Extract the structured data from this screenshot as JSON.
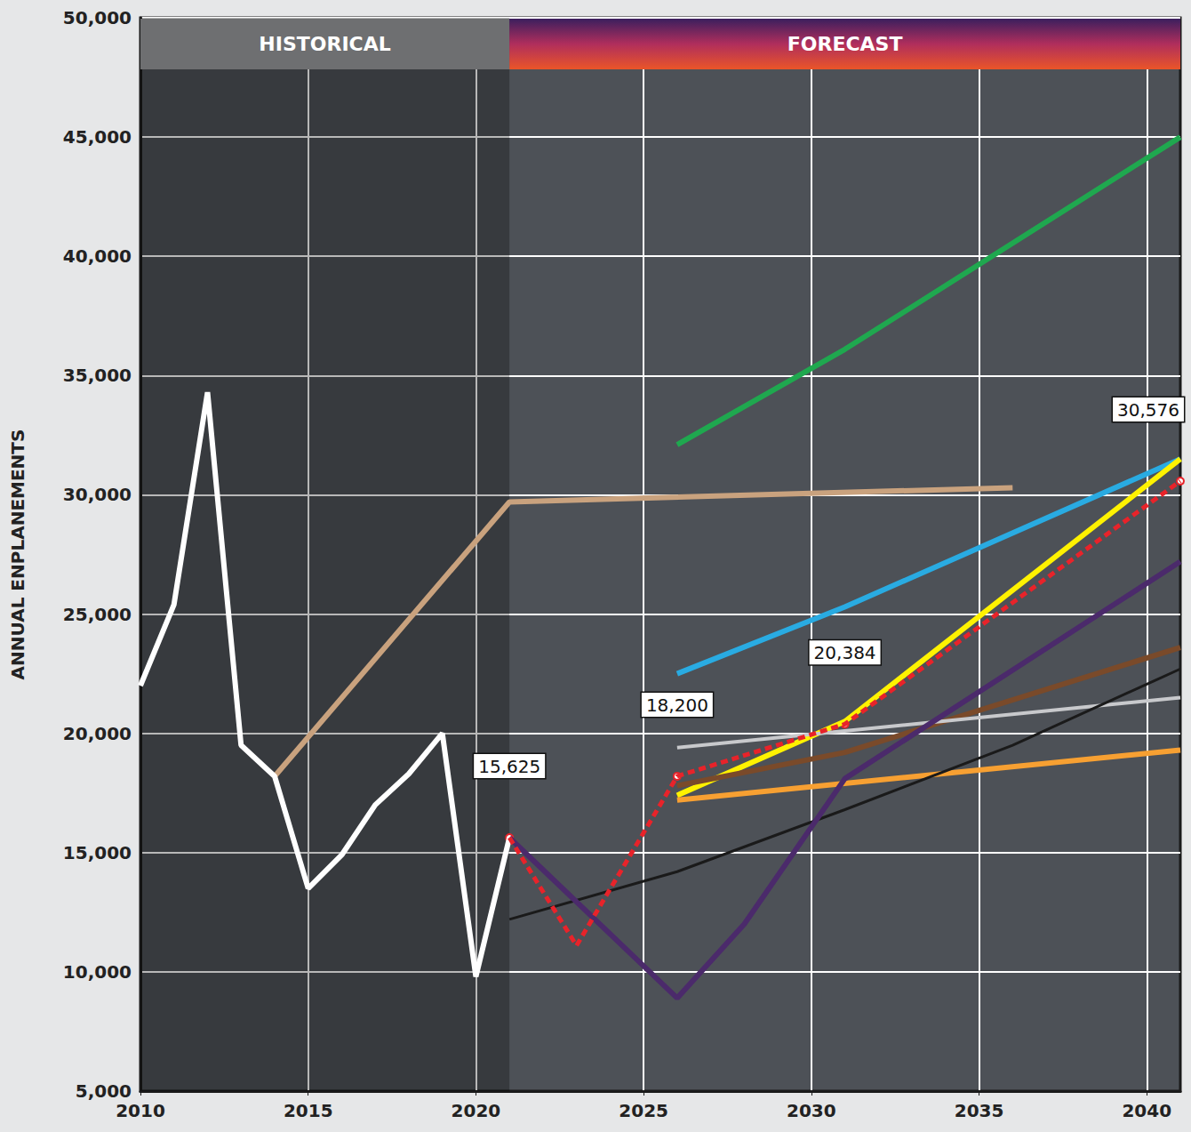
{
  "chart_data": {
    "type": "line",
    "ylabel": "ANNUAL ENPLANEMENTS",
    "periods": [
      {
        "label": "HISTORICAL",
        "from": 2010,
        "to": 2021
      },
      {
        "label": "FORECAST",
        "from": 2021,
        "to": 2041
      }
    ],
    "xlim": [
      2010,
      2041
    ],
    "xticks": [
      2010,
      2015,
      2020,
      2025,
      2030,
      2035,
      2040
    ],
    "ylim": [
      5000,
      50000
    ],
    "yticks": [
      {
        "value": 5000,
        "label": "5,000"
      },
      {
        "value": 10000,
        "label": "10,000"
      },
      {
        "value": 15000,
        "label": "15,000"
      },
      {
        "value": 20000,
        "label": "20,000"
      },
      {
        "value": 25000,
        "label": "25,000"
      },
      {
        "value": 30000,
        "label": "30,000"
      },
      {
        "value": 35000,
        "label": "35,000"
      },
      {
        "value": 40000,
        "label": "40,000"
      },
      {
        "value": 45000,
        "label": "45,000"
      },
      {
        "value": 50000,
        "label": "50,000"
      }
    ],
    "grid": true,
    "series": [
      {
        "color": "#c9a27e",
        "x": [
          2014,
          2021,
          2036
        ],
        "values": [
          18200,
          29700,
          30300
        ]
      },
      {
        "color": "#1fa84f",
        "x": [
          2026,
          2031,
          2041
        ],
        "values": [
          32100,
          36100,
          45000
        ]
      },
      {
        "color": "#29abe2",
        "x": [
          2026,
          2031,
          2041
        ],
        "values": [
          22500,
          25300,
          31500
        ]
      },
      {
        "color": "#fff200",
        "x": [
          2026,
          2031,
          2041
        ],
        "values": [
          17400,
          20500,
          31500
        ]
      },
      {
        "color": "#7a4a2a",
        "x": [
          2026,
          2031,
          2041
        ],
        "values": [
          17800,
          19200,
          23600
        ]
      },
      {
        "color": "#c8c9cc",
        "x": [
          2026,
          2041
        ],
        "values": [
          19400,
          21500
        ]
      },
      {
        "color": "#f7a032",
        "x": [
          2026,
          2041
        ],
        "values": [
          17200,
          19300
        ]
      },
      {
        "color": "#1a1a1a",
        "x": [
          2021,
          2026,
          2031,
          2036,
          2041
        ],
        "values": [
          12200,
          14200,
          16800,
          19500,
          22700
        ]
      },
      {
        "color": "#4b2a6b",
        "x": [
          2021,
          2026,
          2028,
          2031,
          2041
        ],
        "values": [
          15625,
          8900,
          12000,
          18100,
          27200
        ]
      },
      {
        "color": "#ffffff",
        "x": [
          2010,
          2011,
          2012,
          2013,
          2014,
          2015,
          2016,
          2017,
          2018,
          2019,
          2020,
          2021
        ],
        "values": [
          22000,
          25400,
          34300,
          19500,
          18200,
          13500,
          14900,
          17000,
          18300,
          20000,
          9800,
          15625
        ]
      },
      {
        "color": "#e8232a",
        "line_style": "dashed",
        "x": [
          2021,
          2023,
          2026,
          2031,
          2041
        ],
        "values": [
          15625,
          11100,
          18200,
          20384,
          30576
        ]
      }
    ],
    "annotations": [
      {
        "x": 2021,
        "y": 15625,
        "text": "15,625"
      },
      {
        "x": 2026,
        "y": 18200,
        "text": "18,200"
      },
      {
        "x": 2031,
        "y": 20384,
        "text": "20,384"
      },
      {
        "x": 2041,
        "y": 30576,
        "text": "30,576"
      }
    ]
  }
}
